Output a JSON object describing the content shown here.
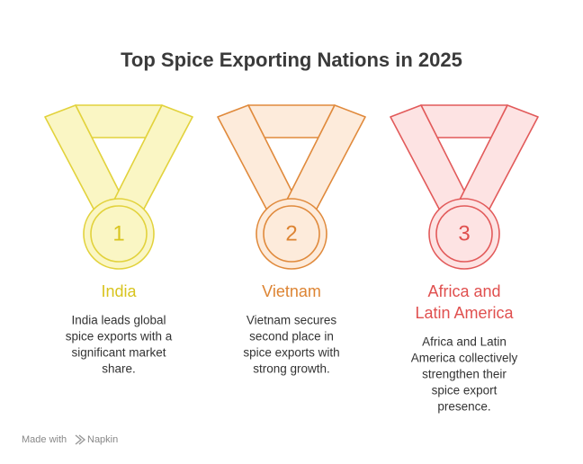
{
  "title": "Top Spice Exporting Nations in 2025",
  "medals": [
    {
      "rank": "1",
      "name": [
        "India"
      ],
      "description": [
        "India leads global",
        "spice exports with a",
        "significant market",
        "share."
      ]
    },
    {
      "rank": "2",
      "name": [
        "Vietnam"
      ],
      "description": [
        "Vietnam secures",
        "second place in",
        "spice exports with",
        "strong growth."
      ]
    },
    {
      "rank": "3",
      "name": [
        "Africa and",
        "Latin America"
      ],
      "description": [
        "Africa and Latin",
        "America collectively",
        "strengthen their",
        "spice export",
        "presence."
      ]
    }
  ],
  "footer": {
    "prefix": "Made with",
    "brand": "Napkin"
  }
}
